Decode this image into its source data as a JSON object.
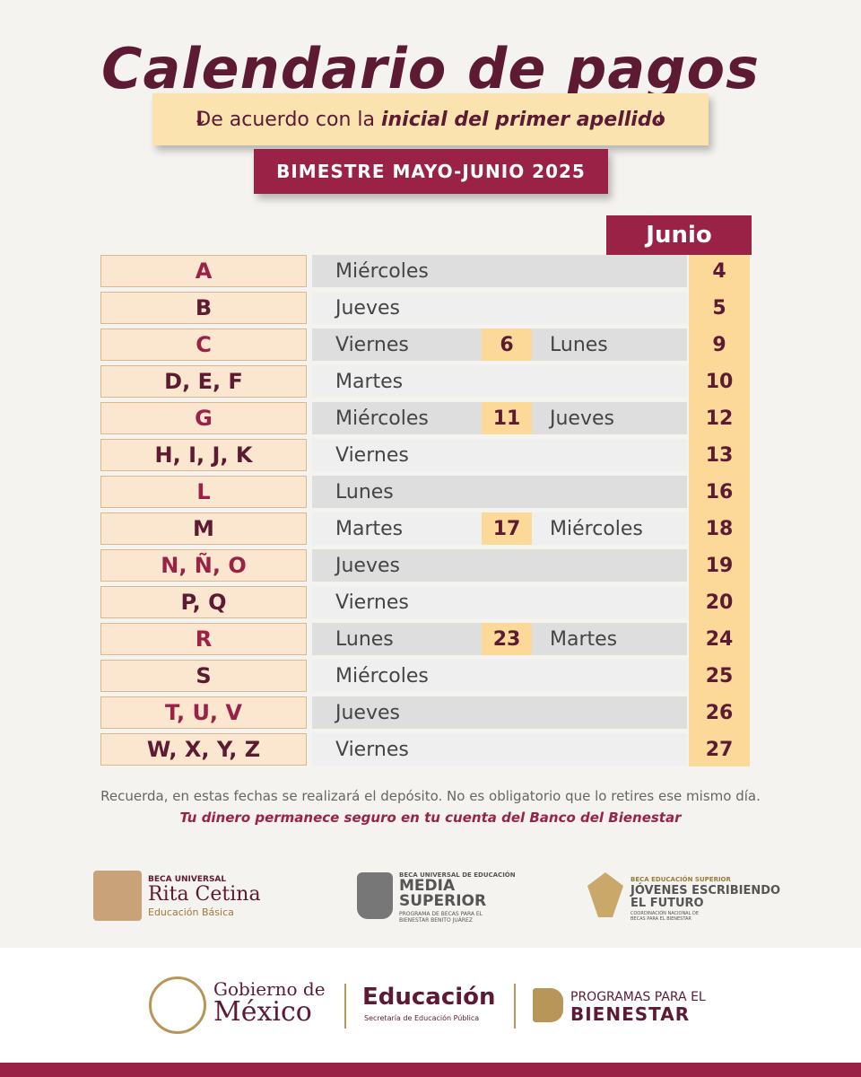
{
  "header": {
    "title": "Calendario de pagos",
    "subtitle_prefix": "De acuerdo con la",
    "subtitle_emphasis": "inicial del primer apellido",
    "period": "BIMESTRE MAYO-JUNIO 2025"
  },
  "table": {
    "month": "Junio",
    "rows": [
      {
        "letters": "A",
        "day": "Miércoles",
        "june_date": 4
      },
      {
        "letters": "B",
        "day": "Jueves",
        "june_date": 5
      },
      {
        "letters": "C",
        "day": "Viernes",
        "mid_date": 6,
        "end_day": "Lunes",
        "june_date": 9
      },
      {
        "letters": "D, E, F",
        "day": "Martes",
        "june_date": 10
      },
      {
        "letters": "G",
        "day": "Miércoles",
        "mid_date": 11,
        "end_day": "Jueves",
        "june_date": 12
      },
      {
        "letters": "H, I, J, K",
        "day": "Viernes",
        "june_date": 13
      },
      {
        "letters": "L",
        "day": "Lunes",
        "june_date": 16
      },
      {
        "letters": "M",
        "day": "Martes",
        "mid_date": 17,
        "end_day": "Miércoles",
        "june_date": 18
      },
      {
        "letters": "N, Ñ, O",
        "day": "Jueves",
        "june_date": 19
      },
      {
        "letters": "P, Q",
        "day": "Viernes",
        "june_date": 20
      },
      {
        "letters": "R",
        "day": "Lunes",
        "mid_date": 23,
        "end_day": "Martes",
        "june_date": 24
      },
      {
        "letters": "S",
        "day": "Miércoles",
        "june_date": 25
      },
      {
        "letters": "T, U, V",
        "day": "Jueves",
        "june_date": 26
      },
      {
        "letters": "W, X, Y, Z",
        "day": "Viernes",
        "june_date": 27
      }
    ]
  },
  "footer": {
    "note": "Recuerda, en estas fechas se realizará el depósito. No es obligatorio que lo retires ese mismo día.",
    "emphasis": "Tu dinero permanece seguro en tu cuenta del Banco del Bienestar"
  },
  "logos": {
    "rita": {
      "top": "BECA UNIVERSAL",
      "name": "Rita Cetina",
      "sub": "Educación Básica"
    },
    "media": {
      "top": "BECA UNIVERSAL DE EDUCACIÓN",
      "line1": "MEDIA",
      "line2": "SUPERIOR",
      "sub": "PROGRAMA DE BECAS PARA EL BIENESTAR BENITO JUÁREZ"
    },
    "jovenes": {
      "top": "BECA EDUCACIÓN SUPERIOR",
      "line1": "JÓVENES ESCRIBIENDO",
      "line2": "EL FUTURO",
      "sub": "COORDINACIÓN NACIONAL DE BECAS PARA EL BIENESTAR"
    }
  },
  "bottom": {
    "gob1": "Gobierno de",
    "gob2": "México",
    "edu": "Educación",
    "edu_sub": "Secretaría de Educación Pública",
    "prog1": "PROGRAMAS PARA EL",
    "prog2": "BIENESTAR"
  }
}
